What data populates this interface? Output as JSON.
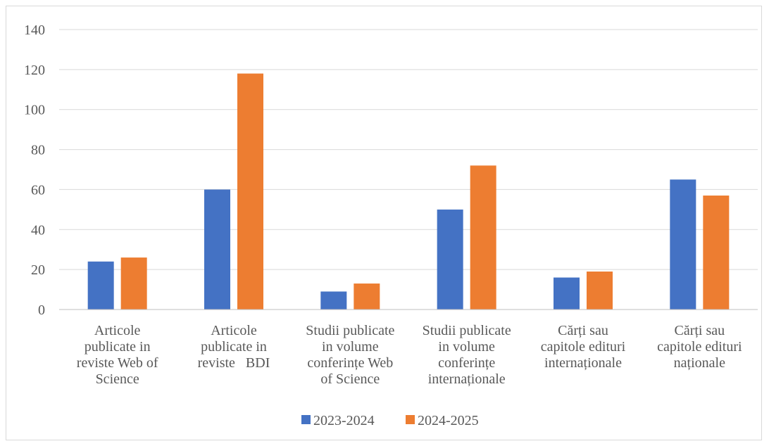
{
  "chart_data": {
    "type": "bar",
    "categories": [
      [
        "Articole",
        "publicate in",
        "reviste Web of",
        "Science"
      ],
      [
        "Articole",
        "publicate in",
        "reviste   BDI"
      ],
      [
        "Studii publicate",
        "in volume",
        "conferințe Web",
        "of Science"
      ],
      [
        "Studii publicate",
        "in volume",
        "conferințe",
        "internaționale"
      ],
      [
        "Cărți sau",
        "capitole edituri",
        "internaționale"
      ],
      [
        "Cărți sau",
        "capitole edituri",
        "naționale"
      ]
    ],
    "series": [
      {
        "name": "2023-2024",
        "color": "#4472c4",
        "values": [
          24,
          60,
          9,
          50,
          16,
          65
        ]
      },
      {
        "name": "2024-2025",
        "color": "#ed7d31",
        "values": [
          26,
          118,
          13,
          72,
          19,
          57
        ]
      }
    ],
    "ylim": [
      0,
      140
    ],
    "yticks": [
      0,
      20,
      40,
      60,
      80,
      100,
      120,
      140
    ],
    "grid": true,
    "legend": "bottom",
    "title": "",
    "xlabel": "",
    "ylabel": ""
  }
}
